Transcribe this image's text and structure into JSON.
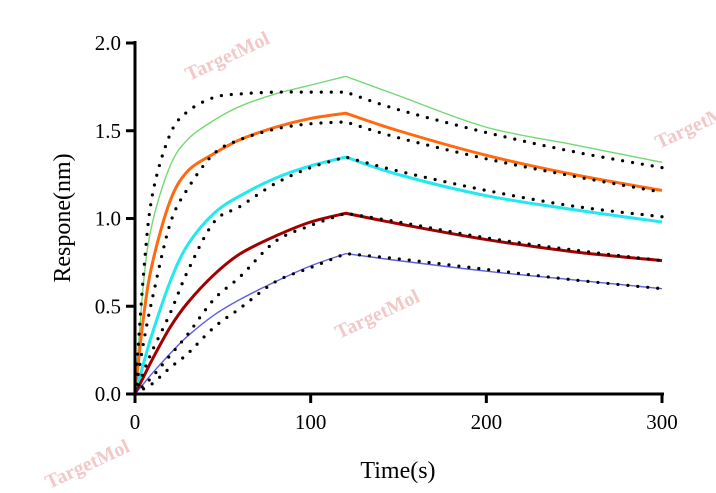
{
  "chart_data": {
    "type": "line",
    "title": "",
    "xlabel": "Time(s)",
    "ylabel": "Respone(nm)",
    "xlim": [
      0,
      300
    ],
    "ylim": [
      0,
      2.0
    ],
    "xticks": [
      "0",
      "100",
      "200",
      "300"
    ],
    "yticks": [
      "0.0",
      "0.5",
      "1.0",
      "1.5",
      "2.0"
    ],
    "grid": false,
    "watermark": "TargetMol",
    "x": [
      0,
      5,
      10,
      20,
      30,
      45,
      60,
      80,
      100,
      120,
      150,
      200,
      250,
      300
    ],
    "series": [
      {
        "style": "solid",
        "color": "#44cc44",
        "values": [
          0,
          0.65,
          0.98,
          1.3,
          1.45,
          1.56,
          1.64,
          1.71,
          1.76,
          1.81,
          1.7,
          1.52,
          1.42,
          1.32
        ]
      },
      {
        "style": "solid",
        "color": "#ff6a10",
        "values": [
          0,
          0.45,
          0.75,
          1.1,
          1.27,
          1.37,
          1.45,
          1.52,
          1.57,
          1.6,
          1.5,
          1.36,
          1.25,
          1.16
        ]
      },
      {
        "style": "solid",
        "color": "#22e8f0",
        "values": [
          0,
          0.18,
          0.35,
          0.64,
          0.85,
          1.03,
          1.13,
          1.23,
          1.3,
          1.35,
          1.25,
          1.13,
          1.05,
          0.98
        ]
      },
      {
        "style": "solid",
        "color": "#a00000",
        "values": [
          0,
          0.1,
          0.2,
          0.38,
          0.52,
          0.68,
          0.8,
          0.9,
          0.98,
          1.03,
          0.97,
          0.88,
          0.81,
          0.76
        ]
      },
      {
        "style": "solid",
        "color": "#2a2ad8",
        "values": [
          0,
          0.06,
          0.12,
          0.23,
          0.33,
          0.45,
          0.54,
          0.64,
          0.73,
          0.8,
          0.76,
          0.7,
          0.65,
          0.6
        ]
      },
      {
        "style": "dotted",
        "color": "#000000",
        "values": [
          0,
          0.7,
          1.14,
          1.48,
          1.61,
          1.69,
          1.71,
          1.72,
          1.72,
          1.72,
          1.62,
          1.49,
          1.38,
          1.29
        ]
      },
      {
        "style": "dotted",
        "color": "#000000",
        "values": [
          0,
          0.3,
          0.55,
          0.97,
          1.17,
          1.37,
          1.45,
          1.51,
          1.54,
          1.55,
          1.46,
          1.34,
          1.24,
          1.15
        ]
      },
      {
        "style": "dotted",
        "color": "#000000",
        "values": [
          0,
          0.13,
          0.25,
          0.46,
          0.7,
          0.98,
          1.07,
          1.2,
          1.29,
          1.35,
          1.27,
          1.16,
          1.07,
          1.01
        ]
      },
      {
        "style": "dotted",
        "color": "#000000",
        "values": [
          0,
          0.05,
          0.1,
          0.22,
          0.34,
          0.54,
          0.67,
          0.87,
          0.96,
          1.03,
          0.98,
          0.89,
          0.82,
          0.76
        ]
      },
      {
        "style": "dotted",
        "color": "#000000",
        "values": [
          0,
          0.03,
          0.06,
          0.15,
          0.23,
          0.38,
          0.49,
          0.64,
          0.72,
          0.8,
          0.77,
          0.71,
          0.65,
          0.6
        ]
      }
    ]
  }
}
